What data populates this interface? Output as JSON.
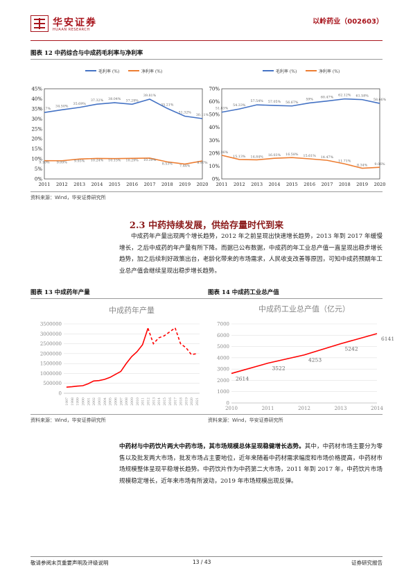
{
  "header": {
    "brand": "华安证券",
    "brand_sub": "HUAAN RESEARCH",
    "ticker": "以岭药业（002603）"
  },
  "figure12": {
    "caption": "图表 12 中药综合与中成药毛利率与净利率",
    "source": "资料来源：Wind，华安证券研究所"
  },
  "section": {
    "title": "2.3 中药持续发展，供给存量时代到来",
    "para1": "中成药年产量出现两个增长趋势，2012 年之前呈现出快速增长趋势，2013 年到 2017 年缓慢增长，之后中成药的年产量有所下降。而据已公布数据，中成药的年工业总产值一直呈现出稳步增长趋势，加之后续利好政策出台，老龄化带来的市场需求，人民收支改善等原因，可知中成药预期年工业总产值会继续呈现出稳步增长趋势。"
  },
  "figure13": {
    "caption": "图表 13 中成药年产量",
    "source": "资料来源：Wind，华安证券研究所"
  },
  "figure14": {
    "caption": "图表 14 中成药工业总产值",
    "source": "资料来源：Wind，华安证券研究所"
  },
  "para2": {
    "bold": "中药材与中药饮片两大中药市场，其市场规模总体呈现稳健增长态势。",
    "text": "其中，中药材市场主要分为零售以及批发两大市场，批发市场占主要地位，近年来随着中药材需求幅度和市场价格提高，中药材市场规模整体呈现平稳增长趋势。中药饮片作为中药第二大市场，2011 年到 2017 年，中药饮片市场规模稳定增长，近年来市场有所波动，2019 年市场规模出现反弹。"
  },
  "footer": {
    "left": "敬请参阅末页重要声明及评级说明",
    "page": "13 / 43",
    "right": "证券研究报告"
  },
  "chart_data": [
    {
      "type": "line",
      "x": [
        "2011",
        "2012",
        "2013",
        "2014",
        "2015",
        "2016",
        "2017",
        "2018",
        "2019",
        "2020"
      ],
      "ylim": [
        0,
        45
      ],
      "yticks": [
        "0%",
        "5%",
        "10%",
        "15%",
        "20%",
        "25%",
        "30%",
        "35%",
        "40%",
        "45%"
      ],
      "series": [
        {
          "name": "毛利率 (%)",
          "color": "#4472c4",
          "values": [
            33.17,
            34.5,
            35.69,
            37.32,
            38.04,
            37.29,
            39.81,
            35.21,
            31.32,
            30.11
          ],
          "labels": [
            "33.17%",
            "34.50%",
            "35.69%",
            "37.32%",
            "38.04%",
            "37.29%",
            "39.81%",
            "35.21%",
            "31.32%",
            "30.11%"
          ]
        },
        {
          "name": "净利率 (%)",
          "color": "#ed7d31",
          "values": [
            9.1,
            9.09,
            9.93,
            10.24,
            10.15,
            10.29,
            10.39,
            8.53,
            7.44,
            8.97
          ],
          "labels": [
            "9.10%",
            "9.09%",
            "9.93%",
            "10.24%",
            "10.15%",
            "10.29%",
            "10.39%",
            "8.53%",
            "7.44%",
            "8.97%"
          ]
        }
      ]
    },
    {
      "type": "line",
      "x": [
        "2011",
        "2012",
        "2013",
        "2014",
        "2015",
        "2016",
        "2017",
        "2018",
        "2019",
        "2020"
      ],
      "ylim": [
        0,
        70
      ],
      "yticks": [
        "0%",
        "10%",
        "20%",
        "30%",
        "40%",
        "50%",
        "60%",
        "70%"
      ],
      "series": [
        {
          "name": "毛利率 (%)",
          "color": "#4472c4",
          "values": [
            51.83,
            54.33,
            57.54,
            57.05,
            56.67,
            59,
            60.47,
            62.12,
            61.58,
            58.66
          ],
          "labels": [
            "51.83%",
            "54.33%",
            "57.54%",
            "57.05%",
            "56.67%",
            "59%",
            "60.47%",
            "62.12%",
            "61.58%",
            "58.66%"
          ]
        },
        {
          "name": "净利率 (%)",
          "color": "#ed7d31",
          "values": [
            18.36,
            15.13,
            14.84,
            16.03,
            16.58,
            15.61,
            14.47,
            11.71,
            8.34,
            9.06
          ],
          "labels": [
            "18.36%",
            "15.13%",
            "14.84%",
            "16.03%",
            "16.58%",
            "15.61%",
            "14.47%",
            "11.71%",
            "8.34%",
            "9.06%"
          ]
        }
      ]
    },
    {
      "type": "line",
      "title": "中成药年产量",
      "x": [
        "1997",
        "1998",
        "1999",
        "2000",
        "2001",
        "2002",
        "2003",
        "2004",
        "2005",
        "2006",
        "2007",
        "2008",
        "2009",
        "2010",
        "2011",
        "2012",
        "2013",
        "2014",
        "2015",
        "2016",
        "2017",
        "2018",
        "2019",
        "2020",
        "2021"
      ],
      "ylim": [
        0,
        3500000
      ],
      "yticks": [
        "0",
        "500000",
        "1000000",
        "1500000",
        "2000000",
        "2500000",
        "3000000",
        "3500000"
      ],
      "series": [
        {
          "color": "#ff0000",
          "values": [
            310000,
            330000,
            360000,
            380000,
            480000,
            620000,
            640000,
            700000,
            800000,
            950000,
            1100000,
            1500000,
            1850000,
            2100000,
            2450000,
            3280000,
            2500000,
            2800000,
            2900000,
            3100000,
            3300000,
            2500000,
            2300000,
            1950000,
            2000000
          ]
        }
      ],
      "dashed_from": "2012"
    },
    {
      "type": "line",
      "title": "中成药工业总产值（亿元）",
      "x": [
        "2010",
        "2011",
        "2012",
        "2013",
        "2014"
      ],
      "ylim": [
        0,
        7000
      ],
      "yticks": [
        "0",
        "1000",
        "2000",
        "3000",
        "4000",
        "5000",
        "6000",
        "7000"
      ],
      "series": [
        {
          "color": "#ff0000",
          "values": [
            2614,
            3522,
            4253,
            5242,
            6141
          ],
          "labels": [
            "2614",
            "3522",
            "4253",
            "5242",
            "6141"
          ]
        }
      ]
    }
  ]
}
